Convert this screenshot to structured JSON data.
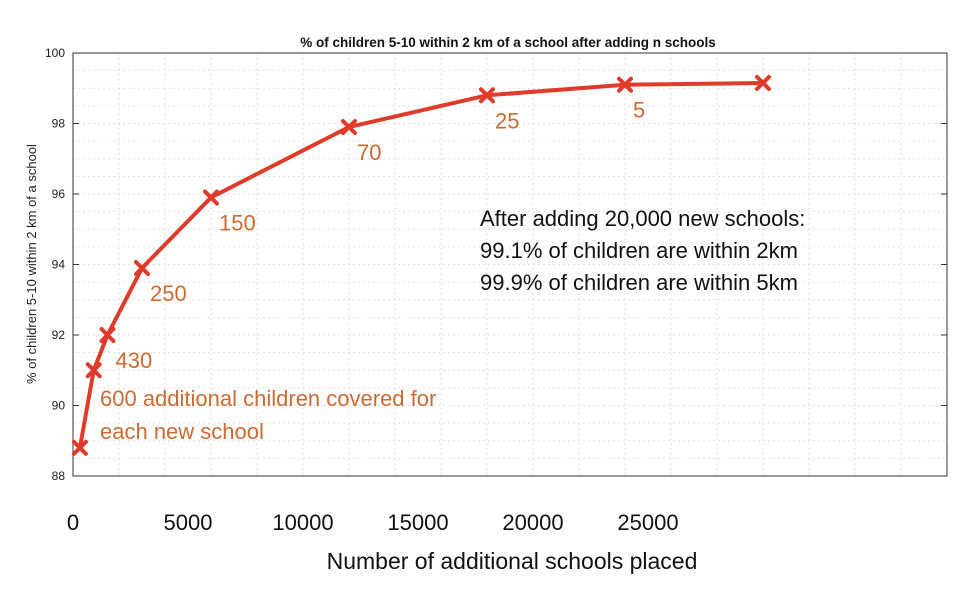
{
  "chart_data": {
    "type": "line",
    "title": "% of children 5-10 within 2 km of a school after adding n schools",
    "xlabel": "Number of additional schools placed",
    "ylabel": "% of children 5-10 within 2 km of a school",
    "xlim": [
      0,
      38000
    ],
    "ylim": [
      88,
      100
    ],
    "grid": true,
    "x_ticks": [
      0,
      5000,
      10000,
      15000,
      20000,
      25000
    ],
    "x_tick_labels": [
      "0",
      "5000",
      "10000",
      "15000",
      "20000",
      "25000"
    ],
    "y_ticks": [
      88,
      90,
      92,
      94,
      96,
      98,
      100
    ],
    "y_tick_labels": [
      "88",
      "90",
      "92",
      "94",
      "96",
      "98",
      "100"
    ],
    "color": "#e03a2a",
    "series": [
      {
        "x": [
          300,
          900,
          1500,
          3000,
          6000,
          12000,
          18000,
          24000,
          30000
        ],
        "y": [
          88.8,
          91.0,
          92.0,
          93.9,
          95.9,
          97.9,
          98.8,
          99.1,
          99.15
        ]
      }
    ],
    "point_labels": [
      {
        "text": "430",
        "x": 1500,
        "y": 92.0
      },
      {
        "text": "250",
        "x": 3000,
        "y": 93.9
      },
      {
        "text": "150",
        "x": 6000,
        "y": 95.9
      },
      {
        "text": "70",
        "x": 12000,
        "y": 97.9
      },
      {
        "text": "25",
        "x": 18000,
        "y": 98.8
      },
      {
        "text": "5",
        "x": 24000,
        "y": 99.1
      }
    ],
    "annotations": {
      "orange": [
        "600 additional children covered for",
        "each new school"
      ],
      "black": [
        "After adding 20,000 new schools:",
        "99.1% of children are within 2km",
        "99.9% of children are within 5km"
      ]
    }
  }
}
